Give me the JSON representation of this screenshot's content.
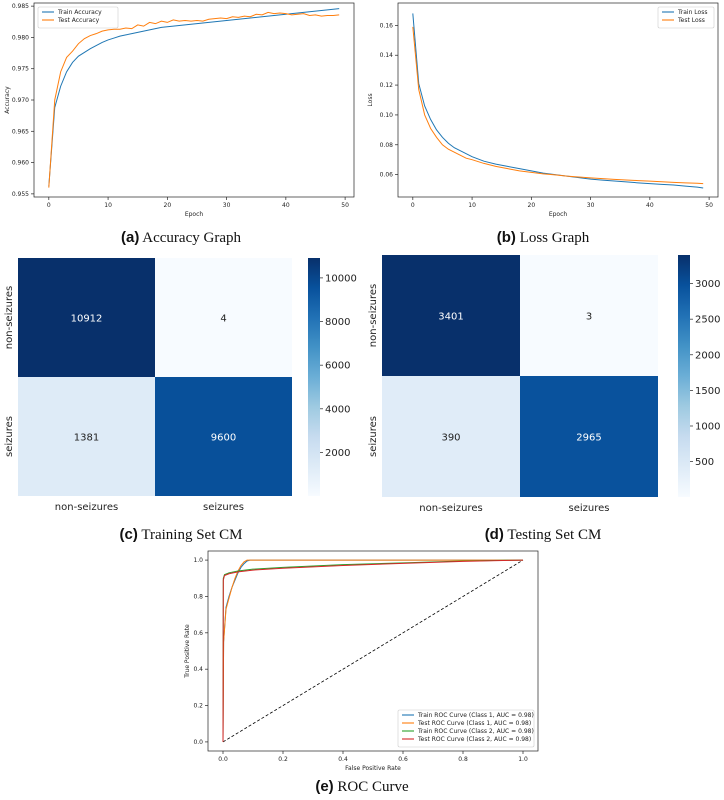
{
  "captions": {
    "a": {
      "tag": "(a)",
      "text": "Accuracy Graph"
    },
    "b": {
      "tag": "(b)",
      "text": "Loss Graph"
    },
    "c": {
      "tag": "(c)",
      "text": "Training Set CM"
    },
    "d": {
      "tag": "(d)",
      "text": "Testing Set CM"
    },
    "e": {
      "tag": "(e)",
      "text": "ROC Curve"
    }
  },
  "chart_data": [
    {
      "id": "accuracy",
      "type": "line",
      "xlabel": "Epoch",
      "ylabel": "Accuracy",
      "xlim": [
        -2.5,
        51.5
      ],
      "ylim": [
        0.9545,
        0.9855
      ],
      "xticks": [
        0,
        10,
        20,
        30,
        40,
        50
      ],
      "yticks": [
        0.955,
        0.96,
        0.965,
        0.97,
        0.975,
        0.98,
        0.985
      ],
      "ytick_labels": [
        "0.955",
        "0.960",
        "0.965",
        "0.970",
        "0.975",
        "0.980",
        "0.985"
      ],
      "legend": "top-left",
      "series": [
        {
          "name": "Train Accuracy",
          "color": "#1f77b4",
          "x": [
            0,
            1,
            2,
            3,
            4,
            5,
            6,
            7,
            8,
            9,
            10,
            11,
            12,
            13,
            14,
            15,
            16,
            17,
            18,
            19,
            20,
            21,
            22,
            23,
            24,
            25,
            26,
            27,
            28,
            29,
            30,
            31,
            32,
            33,
            34,
            35,
            36,
            37,
            38,
            39,
            40,
            41,
            42,
            43,
            44,
            45,
            46,
            47,
            48,
            49
          ],
          "y": [
            0.9562,
            0.9688,
            0.9722,
            0.9745,
            0.976,
            0.977,
            0.9776,
            0.9782,
            0.9787,
            0.9792,
            0.9796,
            0.9799,
            0.9802,
            0.9804,
            0.9806,
            0.9808,
            0.981,
            0.9812,
            0.9814,
            0.9816,
            0.9817,
            0.9818,
            0.9819,
            0.982,
            0.9821,
            0.9822,
            0.9823,
            0.9824,
            0.9825,
            0.9826,
            0.9827,
            0.9828,
            0.9829,
            0.983,
            0.9831,
            0.9832,
            0.9833,
            0.9834,
            0.9835,
            0.9836,
            0.9837,
            0.9838,
            0.9839,
            0.984,
            0.9841,
            0.9842,
            0.9843,
            0.9844,
            0.9845,
            0.9846
          ]
        },
        {
          "name": "Test Accuracy",
          "color": "#ff7f0e",
          "x": [
            0,
            1,
            2,
            3,
            4,
            5,
            6,
            7,
            8,
            9,
            10,
            11,
            12,
            13,
            14,
            15,
            16,
            17,
            18,
            19,
            20,
            21,
            22,
            23,
            24,
            25,
            26,
            27,
            28,
            29,
            30,
            31,
            32,
            33,
            34,
            35,
            36,
            37,
            38,
            39,
            40,
            41,
            42,
            43,
            44,
            45,
            46,
            47,
            48,
            49
          ],
          "y": [
            0.956,
            0.97,
            0.9745,
            0.9768,
            0.9778,
            0.979,
            0.9798,
            0.9803,
            0.9806,
            0.981,
            0.9812,
            0.9813,
            0.9813,
            0.9815,
            0.9814,
            0.982,
            0.9818,
            0.9824,
            0.9822,
            0.9826,
            0.9824,
            0.9828,
            0.9826,
            0.9827,
            0.9826,
            0.9827,
            0.9826,
            0.9829,
            0.983,
            0.9831,
            0.983,
            0.9833,
            0.9832,
            0.9834,
            0.9833,
            0.9837,
            0.9836,
            0.984,
            0.9838,
            0.9839,
            0.9838,
            0.9836,
            0.9837,
            0.9838,
            0.9835,
            0.9836,
            0.9834,
            0.9835,
            0.9835,
            0.9836
          ]
        }
      ]
    },
    {
      "id": "loss",
      "type": "line",
      "xlabel": "Epoch",
      "ylabel": "Loss",
      "xlim": [
        -2.5,
        51.5
      ],
      "ylim": [
        0.045,
        0.175
      ],
      "xticks": [
        0,
        10,
        20,
        30,
        40,
        50
      ],
      "yticks": [
        0.06,
        0.08,
        0.1,
        0.12,
        0.14,
        0.16
      ],
      "ytick_labels": [
        "0.06",
        "0.08",
        "0.10",
        "0.12",
        "0.14",
        "0.16"
      ],
      "legend": "top-right",
      "series": [
        {
          "name": "Train Loss",
          "color": "#1f77b4",
          "x": [
            0,
            1,
            2,
            3,
            4,
            5,
            6,
            7,
            8,
            9,
            10,
            12,
            14,
            16,
            18,
            20,
            22,
            24,
            26,
            28,
            30,
            32,
            34,
            36,
            38,
            40,
            42,
            44,
            46,
            48,
            49
          ],
          "y": [
            0.168,
            0.121,
            0.106,
            0.097,
            0.09,
            0.085,
            0.081,
            0.078,
            0.076,
            0.074,
            0.072,
            0.069,
            0.067,
            0.0655,
            0.064,
            0.0625,
            0.061,
            0.06,
            0.059,
            0.058,
            0.057,
            0.0563,
            0.0557,
            0.0551,
            0.0545,
            0.054,
            0.0535,
            0.053,
            0.0523,
            0.0516,
            0.051
          ]
        },
        {
          "name": "Test Loss",
          "color": "#ff7f0e",
          "x": [
            0,
            1,
            2,
            3,
            4,
            5,
            6,
            7,
            8,
            9,
            10,
            12,
            14,
            16,
            18,
            20,
            22,
            24,
            26,
            28,
            30,
            32,
            34,
            36,
            38,
            40,
            42,
            44,
            46,
            48,
            49
          ],
          "y": [
            0.159,
            0.117,
            0.1,
            0.091,
            0.085,
            0.08,
            0.077,
            0.075,
            0.073,
            0.071,
            0.07,
            0.0675,
            0.0655,
            0.064,
            0.0625,
            0.0615,
            0.0605,
            0.0598,
            0.059,
            0.0584,
            0.0578,
            0.0573,
            0.0568,
            0.0564,
            0.056,
            0.0556,
            0.0552,
            0.0548,
            0.0545,
            0.0542,
            0.054
          ]
        }
      ]
    },
    {
      "id": "train_cm",
      "type": "heatmap",
      "rows": [
        "non-seizures",
        "seizures"
      ],
      "cols": [
        "non-seizures",
        "seizures"
      ],
      "values": [
        [
          10912,
          4
        ],
        [
          1381,
          9600
        ]
      ],
      "colorbar_ticks": [
        2000,
        4000,
        6000,
        8000,
        10000
      ],
      "colorbar_range": [
        4,
        10912
      ]
    },
    {
      "id": "test_cm",
      "type": "heatmap",
      "rows": [
        "non-seizures",
        "seizures"
      ],
      "cols": [
        "non-seizures",
        "seizures"
      ],
      "values": [
        [
          3401,
          3
        ],
        [
          390,
          2965
        ]
      ],
      "colorbar_ticks": [
        500,
        1000,
        1500,
        2000,
        2500,
        3000
      ],
      "colorbar_range": [
        3,
        3401
      ]
    },
    {
      "id": "roc",
      "type": "line",
      "xlabel": "False Positive Rate",
      "ylabel": "True Positive Rate",
      "xlim": [
        -0.05,
        1.05
      ],
      "ylim": [
        -0.05,
        1.05
      ],
      "xticks": [
        0.0,
        0.2,
        0.4,
        0.6,
        0.8,
        1.0
      ],
      "yticks": [
        0.0,
        0.2,
        0.4,
        0.6,
        0.8,
        1.0
      ],
      "xtick_labels": [
        "0.0",
        "0.2",
        "0.4",
        "0.6",
        "0.8",
        "1.0"
      ],
      "ytick_labels": [
        "0.0",
        "0.2",
        "0.4",
        "0.6",
        "0.8",
        "1.0"
      ],
      "legend": "bottom-right",
      "series": [
        {
          "name": "Train ROC Curve (Class 1, AUC = 0.98)",
          "color": "#1f77b4",
          "x": [
            0,
            0.002,
            0.01,
            0.02,
            0.03,
            0.04,
            0.05,
            0.06,
            0.07,
            0.08,
            0.09,
            0.2,
            0.5,
            1.0
          ],
          "y": [
            0,
            0.55,
            0.74,
            0.8,
            0.85,
            0.89,
            0.93,
            0.96,
            0.98,
            0.995,
            1.0,
            1.0,
            1.0,
            1.0
          ]
        },
        {
          "name": "Test ROC Curve (Class 1, AUC = 0.98)",
          "color": "#ff7f0e",
          "x": [
            0,
            0.002,
            0.01,
            0.02,
            0.03,
            0.04,
            0.05,
            0.06,
            0.07,
            0.08,
            0.09,
            0.2,
            0.5,
            1.0
          ],
          "y": [
            0,
            0.55,
            0.73,
            0.79,
            0.85,
            0.9,
            0.94,
            0.97,
            0.99,
            1.0,
            1.0,
            1.0,
            1.0,
            1.0
          ]
        },
        {
          "name": "Train ROC Curve (Class 2, AUC = 0.98)",
          "color": "#2ca02c",
          "x": [
            0,
            0.001,
            0.005,
            0.02,
            0.05,
            0.1,
            0.2,
            0.4,
            0.6,
            0.8,
            1.0
          ],
          "y": [
            0,
            0.9,
            0.92,
            0.93,
            0.94,
            0.95,
            0.96,
            0.975,
            0.985,
            0.995,
            1.0
          ]
        },
        {
          "name": "Test ROC Curve (Class 2, AUC = 0.98)",
          "color": "#d62728",
          "x": [
            0,
            0.001,
            0.005,
            0.02,
            0.05,
            0.1,
            0.2,
            0.4,
            0.6,
            0.8,
            1.0
          ],
          "y": [
            0,
            0.89,
            0.915,
            0.925,
            0.935,
            0.945,
            0.955,
            0.97,
            0.982,
            0.993,
            1.0
          ]
        }
      ],
      "reference_line": {
        "x": [
          0,
          1
        ],
        "y": [
          0,
          1
        ],
        "style": "dashed",
        "color": "#000000"
      }
    }
  ]
}
